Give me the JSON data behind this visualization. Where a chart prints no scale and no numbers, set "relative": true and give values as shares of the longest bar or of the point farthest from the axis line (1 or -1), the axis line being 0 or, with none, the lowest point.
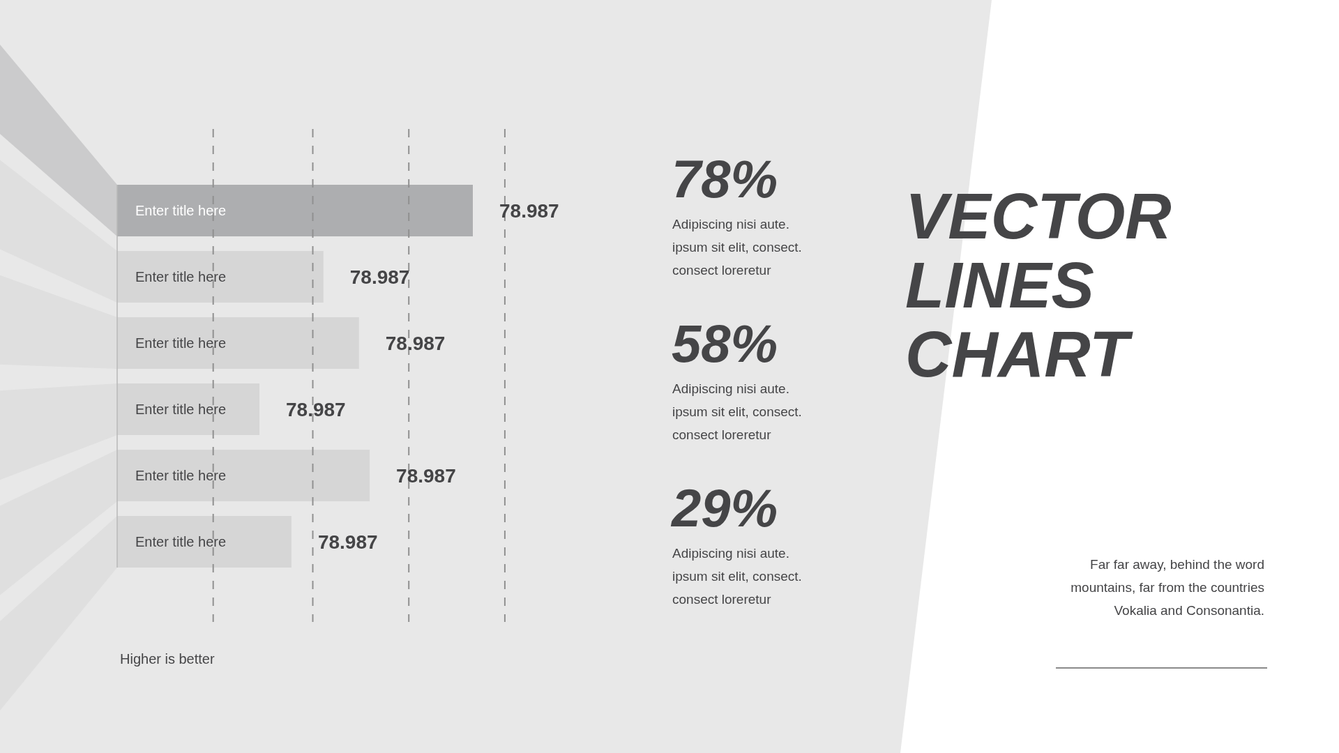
{
  "chart_data": [
    {
      "type": "bar",
      "orientation": "horizontal",
      "relative": true,
      "categories": [
        "Enter title here",
        "Enter title here",
        "Enter title here",
        "Enter title here",
        "Enter title here",
        "Enter title here"
      ],
      "values": [
        1,
        0.58,
        0.68,
        0.4,
        0.71,
        0.49
      ],
      "colors": [
        "#adaeb0",
        "#d6d6d6",
        "#d6d6d6",
        "#d6d6d6",
        "#d6d6d6",
        "#d6d6d6"
      ],
      "ref_lines": [
        {
          "axis": "x",
          "value": 0.27,
          "color": "#909090",
          "line_style": "dashed"
        },
        {
          "axis": "x",
          "value": 0.55,
          "color": "#909090",
          "line_style": "dashed"
        },
        {
          "axis": "x",
          "value": 0.82,
          "color": "#909090",
          "line_style": "dashed"
        },
        {
          "axis": "x",
          "value": 1.09,
          "color": "#909090",
          "line_style": "dashed"
        }
      ],
      "annotations": [
        "78.987",
        "78.987",
        "78.987",
        "78.987",
        "78.987",
        "78.987",
        "Higher is better"
      ]
    },
    {
      "type": "other",
      "title": "VECTOR LINES CHART",
      "annotations": [
        "78%",
        "Adipiscing nisi aute.\nipsum sit elit, consect.\nconsect loreretur",
        "58%",
        "Adipiscing nisi aute.\nipsum sit elit, consect.\nconsect loreretur",
        "29%",
        "Adipiscing nisi aute.\nipsum sit elit, consect.\nconsect loreretur",
        "Far far away, behind the word\nmountains, far from the countries\nVokalia and Consonantia."
      ]
    }
  ]
}
